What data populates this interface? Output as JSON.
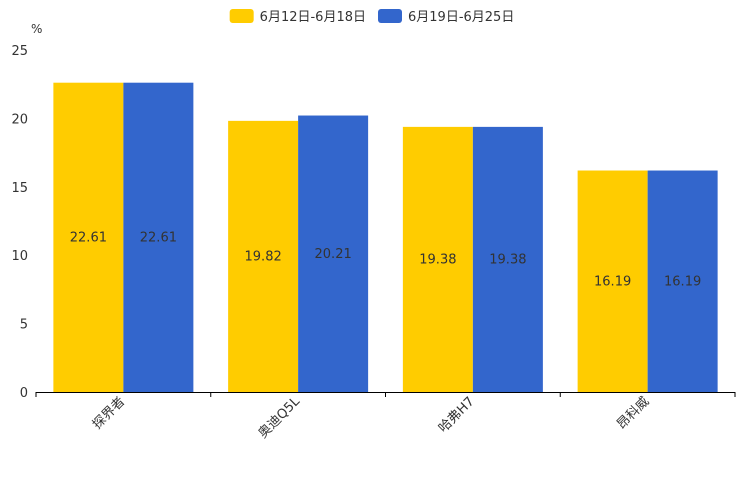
{
  "chart_data": {
    "type": "bar",
    "title": "",
    "xlabel": "",
    "ylabel": "%",
    "ylim": [
      0,
      25
    ],
    "yticks": [
      0,
      5,
      10,
      15,
      20,
      25
    ],
    "grid": false,
    "legend_position": "top-center",
    "categories": [
      "探界者",
      "奥迪Q5L",
      "哈弗H7",
      "昂科威"
    ],
    "series": [
      {
        "name": "6月12日-6月18日",
        "color": "#ffcc00",
        "values": [
          22.61,
          19.82,
          19.38,
          16.19
        ]
      },
      {
        "name": "6月19日-6月25日",
        "color": "#3366cc",
        "values": [
          22.61,
          20.21,
          19.38,
          16.19
        ]
      }
    ],
    "data_labels": [
      [
        "22.61",
        "19.82",
        "19.38",
        "16.19"
      ],
      [
        "22.61",
        "20.21",
        "19.38",
        "16.19"
      ]
    ]
  }
}
